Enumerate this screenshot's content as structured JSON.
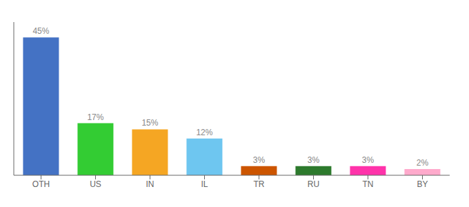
{
  "chart_data": {
    "type": "bar",
    "categories": [
      "OTH",
      "US",
      "IN",
      "IL",
      "TR",
      "RU",
      "TN",
      "BY"
    ],
    "values": [
      45,
      17,
      15,
      12,
      3,
      3,
      3,
      2
    ],
    "value_labels": [
      "45%",
      "17%",
      "15%",
      "12%",
      "3%",
      "3%",
      "3%",
      "2%"
    ],
    "data_labels": true,
    "colors": [
      "#4472c4",
      "#33cc33",
      "#f5a623",
      "#6ec6f0",
      "#cc5500",
      "#2d7a2d",
      "#ff33aa",
      "#ffaacc"
    ],
    "ylim": [
      0,
      50
    ],
    "tick_labels": "x",
    "grid": false
  }
}
